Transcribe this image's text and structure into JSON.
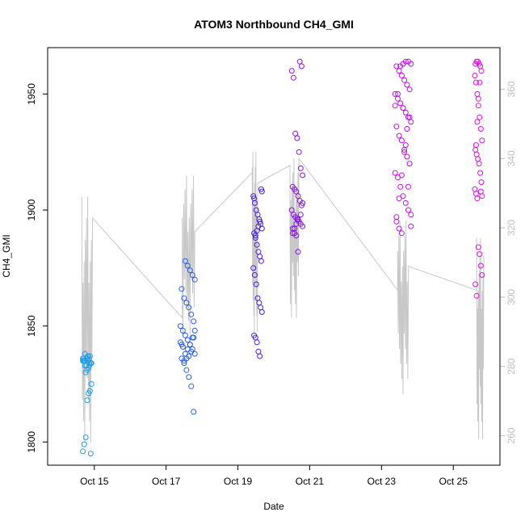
{
  "chart_data": {
    "type": "scatter",
    "title": "ATOM3 Northbound CH4_GMI",
    "xlabel": "Date",
    "ylabel": "CH4_GMI",
    "x_unit": "days since Oct 1",
    "x_ticks": [
      {
        "value": 15,
        "label": "Oct 15"
      },
      {
        "value": 17,
        "label": "Oct 17"
      },
      {
        "value": 19,
        "label": "Oct 19"
      },
      {
        "value": 21,
        "label": "Oct 21"
      },
      {
        "value": 23,
        "label": "Oct 23"
      },
      {
        "value": 25,
        "label": "Oct 25"
      }
    ],
    "xlim": [
      13.7,
      26.3
    ],
    "ylim": [
      1790,
      1970
    ],
    "y_ticks": [
      1800,
      1850,
      1900,
      1950
    ],
    "y2_ticks": [
      260,
      280,
      300,
      320,
      340,
      360
    ],
    "y2lim": [
      251.5,
      372
    ],
    "grid": false,
    "legend": "none",
    "colors": {
      "series_gradient": [
        "#1e9ee8",
        "#2a5cf0",
        "#4a1ae8",
        "#8a10e8",
        "#c010e8",
        "#e010e0"
      ],
      "secondary_line": "#c8c8c8"
    },
    "series": [
      {
        "color": "#1e9ee8",
        "x_center": 14.8,
        "x_spread": 0.12,
        "y_values": [
          1835,
          1834,
          1836,
          1837,
          1833,
          1835,
          1836,
          1834,
          1837,
          1832,
          1831,
          1830,
          1835,
          1836,
          1834,
          1833,
          1837,
          1836,
          1838,
          1835,
          1825,
          1822,
          1821,
          1818,
          1802,
          1799,
          1796,
          1795,
          1834,
          1835,
          1836,
          1833
        ]
      },
      {
        "color": "#2a5cf0",
        "x_center": 17.6,
        "x_spread": 0.2,
        "y_values": [
          1813,
          1824,
          1828,
          1831,
          1834,
          1836,
          1838,
          1840,
          1842,
          1844,
          1846,
          1848,
          1850,
          1852,
          1855,
          1858,
          1860,
          1862,
          1866,
          1870,
          1872,
          1874,
          1876,
          1878,
          1841,
          1843,
          1845,
          1839,
          1837,
          1836,
          1835,
          1842,
          1848,
          1845,
          1842,
          1840,
          1838
        ]
      },
      {
        "color": "#4a1ae8",
        "x_center": 19.55,
        "x_spread": 0.12,
        "y_values": [
          1837,
          1839,
          1843,
          1845,
          1846,
          1856,
          1858,
          1860,
          1862,
          1868,
          1872,
          1875,
          1878,
          1880,
          1882,
          1885,
          1888,
          1890,
          1892,
          1894,
          1896,
          1898,
          1900,
          1903,
          1906,
          1909,
          1895,
          1893,
          1891,
          1889,
          1905,
          1908
        ]
      },
      {
        "color": "#8a10e8",
        "x_center": 20.65,
        "x_spread": 0.15,
        "y_values": [
          1882,
          1889,
          1890,
          1892,
          1893,
          1894,
          1895,
          1896,
          1897,
          1898,
          1900,
          1902,
          1904,
          1906,
          1908,
          1909,
          1910,
          1915,
          1918,
          1925,
          1931,
          1933,
          1957,
          1960,
          1962,
          1964,
          1896,
          1894,
          1892,
          1890,
          1903,
          1898
        ]
      },
      {
        "color": "#c010e8",
        "x_center": 23.6,
        "x_spread": 0.22,
        "y_values": [
          1890,
          1892,
          1895,
          1898,
          1900,
          1903,
          1906,
          1910,
          1914,
          1916,
          1920,
          1923,
          1926,
          1930,
          1932,
          1936,
          1938,
          1940,
          1942,
          1944,
          1946,
          1948,
          1950,
          1952,
          1954,
          1956,
          1958,
          1960,
          1962,
          1963,
          1964,
          1964,
          1963,
          1962,
          1950,
          1945,
          1940,
          1935,
          1925,
          1915,
          1905,
          1897,
          1893,
          1910,
          1928,
          1944
        ]
      },
      {
        "color": "#e010e0",
        "x_center": 25.7,
        "x_spread": 0.1,
        "y_values": [
          1863,
          1868,
          1872,
          1876,
          1881,
          1884,
          1905,
          1907,
          1909,
          1912,
          1916,
          1920,
          1922,
          1924,
          1926,
          1930,
          1935,
          1940,
          1945,
          1950,
          1955,
          1958,
          1960,
          1962,
          1963,
          1964,
          1964,
          1963,
          1906,
          1908,
          1955,
          1948,
          1938,
          1928
        ]
      }
    ],
    "secondary_series": {
      "color": "#c8c8c8",
      "axis": "right",
      "segments": [
        {
          "x0": 14.65,
          "x1": 14.95,
          "min": 258,
          "max": 329
        },
        {
          "x0": 17.45,
          "x1": 17.8,
          "min": 289,
          "max": 335
        },
        {
          "x0": 19.4,
          "x1": 19.55,
          "min": 290,
          "max": 342
        },
        {
          "x0": 20.45,
          "x1": 20.7,
          "min": 294,
          "max": 340
        },
        {
          "x0": 23.45,
          "x1": 23.75,
          "min": 272,
          "max": 322
        },
        {
          "x0": 25.65,
          "x1": 25.85,
          "min": 259,
          "max": 317
        }
      ],
      "connectors": [
        [
          14.95,
          282
        ],
        [
          17.45,
          294
        ],
        [
          17.8,
          299
        ],
        [
          19.4,
          336
        ],
        [
          19.55,
          302
        ],
        [
          20.45,
          338
        ],
        [
          20.7,
          289
        ],
        [
          23.45,
          302
        ],
        [
          23.75,
          315
        ],
        [
          25.65,
          302
        ]
      ]
    }
  }
}
